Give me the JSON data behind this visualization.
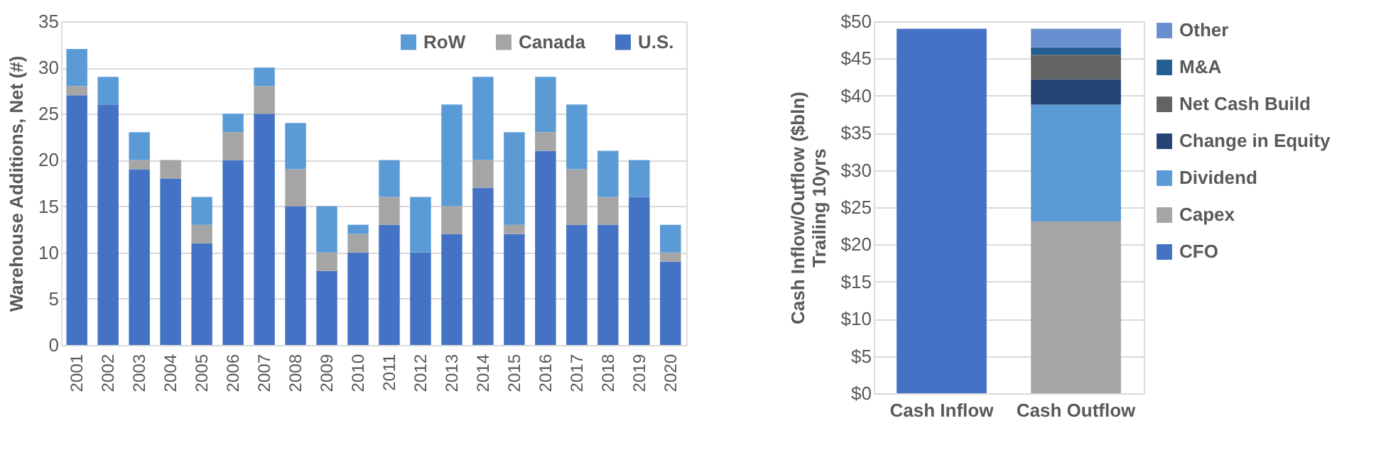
{
  "chart_data": [
    {
      "type": "bar",
      "stacked": true,
      "ylabel": "Warehouse Additions, Net (#)",
      "categories": [
        "2001",
        "2002",
        "2003",
        "2004",
        "2005",
        "2006",
        "2007",
        "2008",
        "2009",
        "2010",
        "2011",
        "2012",
        "2013",
        "2014",
        "2015",
        "2016",
        "2017",
        "2018",
        "2019",
        "2020"
      ],
      "series": [
        {
          "name": "U.S.",
          "color": "#4472c4",
          "values": [
            27,
            26,
            19,
            18,
            11,
            20,
            25,
            15,
            8,
            10,
            13,
            10,
            12,
            17,
            12,
            21,
            13,
            13,
            16,
            9
          ]
        },
        {
          "name": "Canada",
          "color": "#a5a5a5",
          "values": [
            1,
            0,
            1,
            2,
            2,
            3,
            3,
            4,
            2,
            2,
            3,
            0,
            3,
            3,
            1,
            2,
            6,
            3,
            0,
            1
          ]
        },
        {
          "name": "RoW",
          "color": "#5b9bd5",
          "values": [
            4,
            3,
            3,
            0,
            3,
            2,
            2,
            5,
            5,
            1,
            4,
            6,
            11,
            9,
            10,
            6,
            7,
            5,
            4,
            3
          ]
        }
      ],
      "ylim": [
        0,
        35
      ],
      "yticks": [
        0,
        5,
        10,
        15,
        20,
        25,
        30,
        35
      ],
      "grid": "y",
      "legend": "top right"
    },
    {
      "type": "bar",
      "stacked": true,
      "ylabel": "Cash Inflow/Outflow ($bln)\nTrailing 10yrs",
      "categories": [
        "Cash Inflow",
        "Cash Outflow"
      ],
      "series": [
        {
          "name": "CFO",
          "color": "#4472c4",
          "values": [
            49,
            null
          ]
        },
        {
          "name": "Capex",
          "color": "#a5a5a5",
          "values": [
            null,
            23.1
          ]
        },
        {
          "name": "Dividend",
          "color": "#5b9bd5",
          "values": [
            null,
            15.7
          ]
        },
        {
          "name": "Change in Equity",
          "color": "#264478",
          "values": [
            null,
            3.4
          ]
        },
        {
          "name": "Net Cash Build",
          "color": "#636363",
          "values": [
            null,
            3.3
          ]
        },
        {
          "name": "M&A",
          "color": "#255e91",
          "values": [
            null,
            1.0
          ]
        },
        {
          "name": "Other",
          "color": "#698ed0",
          "values": [
            null,
            2.5
          ]
        }
      ],
      "ylim": [
        0,
        50
      ],
      "yticks": [
        {
          "value": 0,
          "label": "$0"
        },
        {
          "value": 5,
          "label": "$5"
        },
        {
          "value": 10,
          "label": "$10"
        },
        {
          "value": 15,
          "label": "$15"
        },
        {
          "value": 20,
          "label": "$20"
        },
        {
          "value": 25,
          "label": "$25"
        },
        {
          "value": 30,
          "label": "$30"
        },
        {
          "value": 35,
          "label": "$35"
        },
        {
          "value": 40,
          "label": "$40"
        },
        {
          "value": 45,
          "label": "$45"
        },
        {
          "value": 50,
          "label": "$50"
        }
      ],
      "grid": "y",
      "legend": "right"
    }
  ]
}
